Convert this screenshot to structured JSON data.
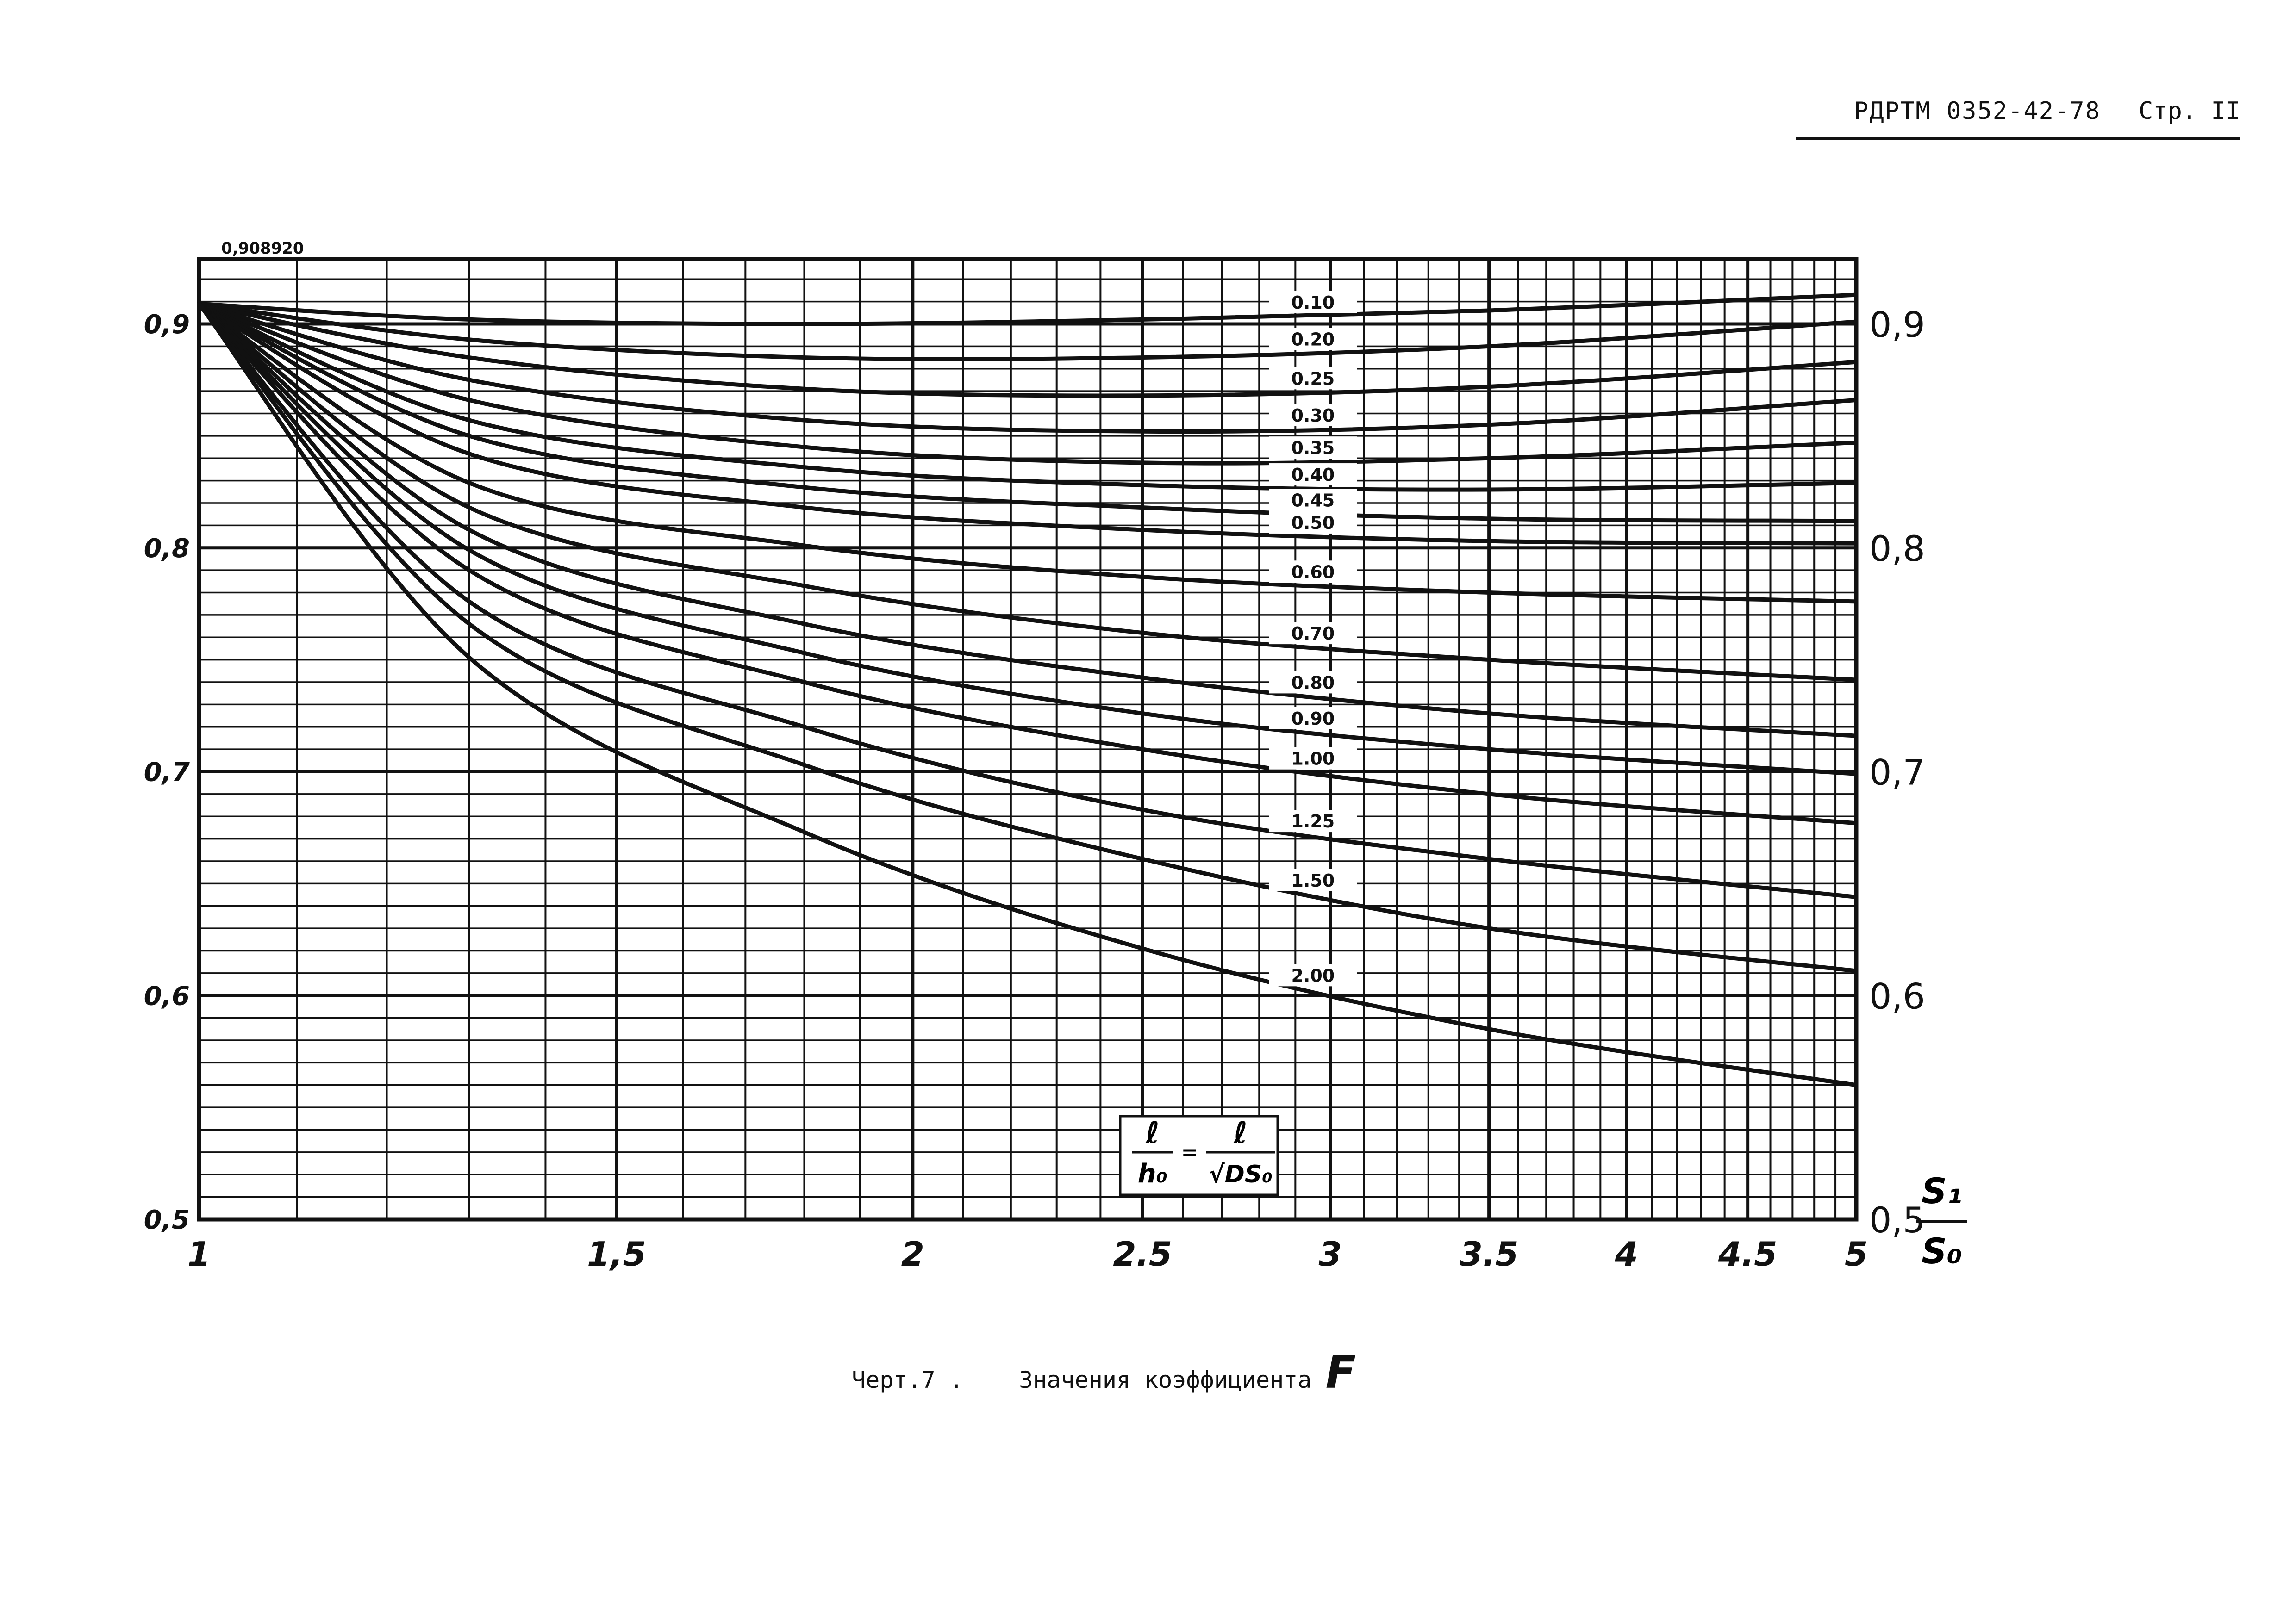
{
  "header": {
    "doc_number": "РДРТМ 0352-42-78",
    "page_prefix": "Стр.",
    "page_number": "II"
  },
  "caption": {
    "figure_label": "Черт.7 .",
    "text": "Значения коэффициента",
    "symbol": "F"
  },
  "chart_data": {
    "type": "line",
    "x_scale": "log",
    "x_range": [
      1,
      5
    ],
    "y_range": [
      0.5,
      0.92
    ],
    "x_ticks": [
      {
        "value": 1,
        "label": "1"
      },
      {
        "value": 1.5,
        "label": "1,5"
      },
      {
        "value": 2,
        "label": "2"
      },
      {
        "value": 2.5,
        "label": "2.5"
      },
      {
        "value": 3,
        "label": "3"
      },
      {
        "value": 3.5,
        "label": "3.5"
      },
      {
        "value": 4,
        "label": "4"
      },
      {
        "value": 4.5,
        "label": "4.5"
      },
      {
        "value": 5,
        "label": "5"
      }
    ],
    "y_ticks_left": [
      {
        "value": 0.9,
        "label": "0,9"
      },
      {
        "value": 0.8,
        "label": "0,8"
      },
      {
        "value": 0.7,
        "label": "0,7"
      },
      {
        "value": 0.6,
        "label": "0,6"
      },
      {
        "value": 0.5,
        "label": "0,5"
      }
    ],
    "y_ticks_right": [
      {
        "value": 0.9,
        "label": "0,9"
      },
      {
        "value": 0.8,
        "label": "0,8"
      },
      {
        "value": 0.7,
        "label": "0,7"
      },
      {
        "value": 0.6,
        "label": "0,6"
      },
      {
        "value": 0.5,
        "label": "0,5"
      }
    ],
    "x_axis_label": {
      "numerator": "S₁",
      "denominator": "S₀"
    },
    "start_value_label": "0,908920",
    "start_value": 0.90892,
    "formula": {
      "lhs_num": "ℓ",
      "lhs_den": "h₀",
      "eq": "=",
      "rhs_num": "ℓ",
      "rhs_den": "√DS₀"
    },
    "grid": true,
    "series": [
      {
        "name": "0.10",
        "x": [
          1,
          1.3,
          1.8,
          2.5,
          3.5,
          5
        ],
        "values": [
          0.909,
          0.902,
          0.9,
          0.902,
          0.906,
          0.913
        ]
      },
      {
        "name": "0.20",
        "x": [
          1,
          1.3,
          1.8,
          2.5,
          3.5,
          5
        ],
        "values": [
          0.909,
          0.893,
          0.885,
          0.885,
          0.89,
          0.901
        ]
      },
      {
        "name": "0.25",
        "x": [
          1,
          1.3,
          1.8,
          2.5,
          3.5,
          5
        ],
        "values": [
          0.909,
          0.885,
          0.871,
          0.868,
          0.872,
          0.883
        ]
      },
      {
        "name": "0.30",
        "x": [
          1,
          1.3,
          1.8,
          2.5,
          3.5,
          5
        ],
        "values": [
          0.909,
          0.875,
          0.857,
          0.852,
          0.855,
          0.866
        ]
      },
      {
        "name": "0.35",
        "x": [
          1,
          1.3,
          1.8,
          2.5,
          3.5,
          5
        ],
        "values": [
          0.909,
          0.866,
          0.845,
          0.838,
          0.84,
          0.847
        ]
      },
      {
        "name": "0.40",
        "x": [
          1,
          1.3,
          1.8,
          2.5,
          3.5,
          5
        ],
        "values": [
          0.909,
          0.857,
          0.836,
          0.828,
          0.826,
          0.829
        ]
      },
      {
        "name": "0.45",
        "x": [
          1,
          1.3,
          1.8,
          2.5,
          3.5,
          5
        ],
        "values": [
          0.909,
          0.85,
          0.827,
          0.818,
          0.813,
          0.812
        ]
      },
      {
        "name": "0.50",
        "x": [
          1,
          1.3,
          1.8,
          2.5,
          3.5,
          5
        ],
        "values": [
          0.909,
          0.842,
          0.818,
          0.808,
          0.803,
          0.802
        ]
      },
      {
        "name": "0.60",
        "x": [
          1,
          1.3,
          1.8,
          2.5,
          3.5,
          5
        ],
        "values": [
          0.909,
          0.829,
          0.801,
          0.787,
          0.78,
          0.776
        ]
      },
      {
        "name": "0.70",
        "x": [
          1,
          1.3,
          1.8,
          2.5,
          3.5,
          5
        ],
        "values": [
          0.909,
          0.818,
          0.783,
          0.762,
          0.75,
          0.741
        ]
      },
      {
        "name": "0.80",
        "x": [
          1,
          1.3,
          1.8,
          2.5,
          3.5,
          5
        ],
        "values": [
          0.909,
          0.808,
          0.766,
          0.742,
          0.726,
          0.716
        ]
      },
      {
        "name": "0.90",
        "x": [
          1,
          1.3,
          1.8,
          2.5,
          3.5,
          5
        ],
        "values": [
          0.909,
          0.799,
          0.753,
          0.726,
          0.71,
          0.699
        ]
      },
      {
        "name": "1.00",
        "x": [
          1,
          1.3,
          1.8,
          2.5,
          3.5,
          5
        ],
        "values": [
          0.909,
          0.79,
          0.74,
          0.71,
          0.69,
          0.677
        ]
      },
      {
        "name": "1.25",
        "x": [
          1,
          1.3,
          1.8,
          2.5,
          3.5,
          5
        ],
        "values": [
          0.909,
          0.776,
          0.72,
          0.683,
          0.661,
          0.644
        ]
      },
      {
        "name": "1.50",
        "x": [
          1,
          1.3,
          1.8,
          2.5,
          3.5,
          5
        ],
        "values": [
          0.909,
          0.766,
          0.703,
          0.661,
          0.63,
          0.611
        ]
      },
      {
        "name": "2.00",
        "x": [
          1,
          1.3,
          1.8,
          2.5,
          3.5,
          5
        ],
        "values": [
          0.909,
          0.751,
          0.673,
          0.621,
          0.585,
          0.56
        ]
      }
    ]
  }
}
